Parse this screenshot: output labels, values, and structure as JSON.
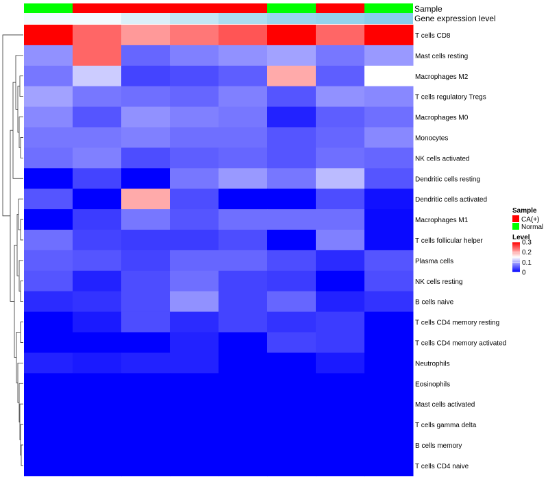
{
  "chart_data": {
    "type": "heatmap",
    "annotation_titles": [
      "Sample",
      "Gene expression level"
    ],
    "sample_annotation": [
      "Normal",
      "CA(+)",
      "CA(+)",
      "CA(+)",
      "CA(+)",
      "Normal",
      "CA(+)",
      "Normal"
    ],
    "expression_annotation": [
      0.1,
      0.1,
      0.3,
      0.5,
      0.7,
      0.85,
      0.9,
      1.0
    ],
    "rows": [
      "T cells CD8",
      "Mast cells resting",
      "Macrophages M2",
      "T cells regulatory  Tregs",
      "Macrophages M0",
      "Monocytes",
      "NK cells activated",
      "Dendritic cells resting",
      "Dendritic cells activated",
      "Macrophages M1",
      "T cells follicular helper",
      "Plasma cells",
      "NK cells resting",
      "B cells naive",
      "T cells CD4 memory resting",
      "T cells CD4 memory activated",
      "Neutrophils",
      "Eosinophils",
      "Mast cells activated",
      "T cells gamma delta",
      "B cells memory",
      "T cells CD4 naive"
    ],
    "values": [
      [
        0.3,
        0.24,
        0.21,
        0.23,
        0.25,
        0.3,
        0.24,
        0.3
      ],
      [
        0.085,
        0.24,
        0.06,
        0.075,
        0.085,
        0.095,
        0.07,
        0.09
      ],
      [
        0.07,
        0.12,
        0.04,
        0.045,
        0.055,
        0.2,
        0.055,
        0.15
      ],
      [
        0.095,
        0.07,
        0.065,
        0.06,
        0.075,
        0.05,
        0.085,
        0.08
      ],
      [
        0.08,
        0.05,
        0.085,
        0.075,
        0.07,
        0.02,
        0.055,
        0.065
      ],
      [
        0.07,
        0.07,
        0.075,
        0.065,
        0.065,
        0.05,
        0.06,
        0.08
      ],
      [
        0.065,
        0.075,
        0.045,
        0.055,
        0.06,
        0.05,
        0.065,
        0.06
      ],
      [
        0.0,
        0.04,
        0.0,
        0.07,
        0.09,
        0.07,
        0.11,
        0.05
      ],
      [
        0.05,
        0.0,
        0.2,
        0.045,
        0.0,
        0.0,
        0.045,
        0.01
      ],
      [
        0.0,
        0.035,
        0.07,
        0.05,
        0.065,
        0.065,
        0.065,
        0.005
      ],
      [
        0.065,
        0.04,
        0.035,
        0.035,
        0.045,
        0.0,
        0.075,
        0.005
      ],
      [
        0.055,
        0.05,
        0.04,
        0.06,
        0.06,
        0.045,
        0.025,
        0.05
      ],
      [
        0.05,
        0.02,
        0.045,
        0.065,
        0.04,
        0.035,
        0.0,
        0.045
      ],
      [
        0.025,
        0.03,
        0.045,
        0.085,
        0.04,
        0.06,
        0.02,
        0.03
      ],
      [
        0.0,
        0.015,
        0.045,
        0.025,
        0.04,
        0.03,
        0.035,
        0.0
      ],
      [
        0.0,
        0.0,
        0.0,
        0.02,
        0.0,
        0.04,
        0.035,
        0.0
      ],
      [
        0.02,
        0.015,
        0.02,
        0.02,
        0.0,
        0.0,
        0.015,
        0.0
      ],
      [
        0.0,
        0.0,
        0.0,
        0.0,
        0.0,
        0.0,
        0.0,
        0.0
      ],
      [
        0.0,
        0.0,
        0.0,
        0.0,
        0.0,
        0.0,
        0.0,
        0.0
      ],
      [
        0.0,
        0.0,
        0.0,
        0.0,
        0.0,
        0.0,
        0.0,
        0.0
      ],
      [
        0.0,
        0.0,
        0.0,
        0.0,
        0.0,
        0.0,
        0.0,
        0.0
      ],
      [
        0.0,
        0.0,
        0.0,
        0.0,
        0.0,
        0.0,
        0.0,
        0.0
      ]
    ],
    "color_scale": {
      "min": 0,
      "mid": 0.15,
      "max": 0.3,
      "colors": [
        "#0000FF",
        "#FFFFFF",
        "#FF0000"
      ]
    },
    "legend": {
      "sample_title": "Sample",
      "sample_entries": [
        {
          "label": "CA(+)",
          "color": "#FF0000"
        },
        {
          "label": "Normal",
          "color": "#00FF00"
        }
      ],
      "level_title": "Level",
      "level_ticks": [
        "0.3",
        "0.2",
        "0.1",
        "0"
      ],
      "level_tick_values": [
        0.3,
        0.2,
        0.1,
        0
      ],
      "placement": "right"
    },
    "annotation_colors": {
      "Normal": "#00FF00",
      "CA(+)": "#FF0000",
      "expression_low": "#FFFFFF",
      "expression_high": "#87CEEB"
    },
    "row_dendrogram": "left",
    "grid": false
  }
}
